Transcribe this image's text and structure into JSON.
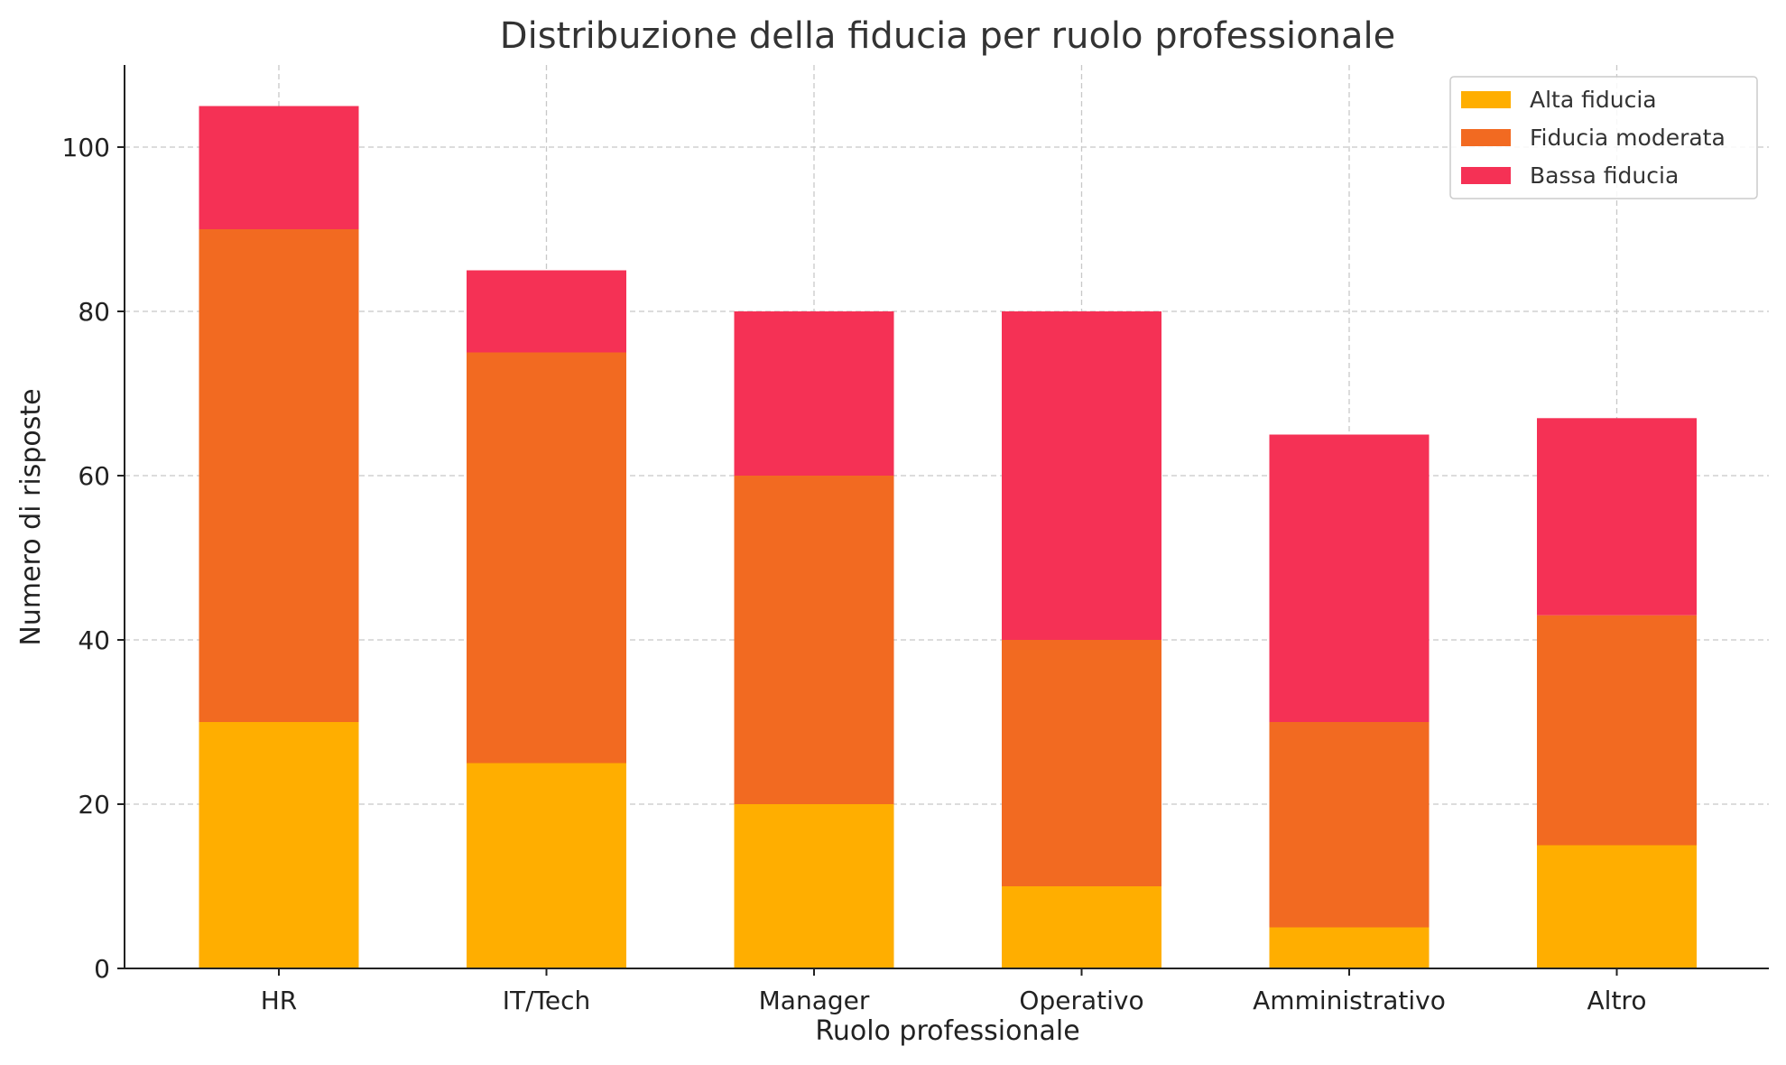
{
  "chart_data": {
    "type": "bar",
    "stacked": true,
    "title": "Distribuzione della fiducia per ruolo professionale",
    "xlabel": "Ruolo professionale",
    "ylabel": "Numero di risposte",
    "categories": [
      "HR",
      "IT/Tech",
      "Manager",
      "Operativo",
      "Amministrativo",
      "Altro"
    ],
    "series": [
      {
        "name": "Alta fiducia",
        "color": "#FFAE00",
        "values": [
          30,
          25,
          20,
          10,
          5,
          15
        ]
      },
      {
        "name": "Fiducia moderata",
        "color": "#F26A21",
        "values": [
          60,
          50,
          40,
          30,
          25,
          28
        ]
      },
      {
        "name": "Bassa fiducia",
        "color": "#F53155",
        "values": [
          15,
          10,
          20,
          40,
          35,
          24
        ]
      }
    ],
    "ylim": [
      0,
      110
    ],
    "yticks": [
      0,
      20,
      40,
      60,
      80,
      100
    ],
    "grid": true,
    "legend_position": "top-right"
  }
}
